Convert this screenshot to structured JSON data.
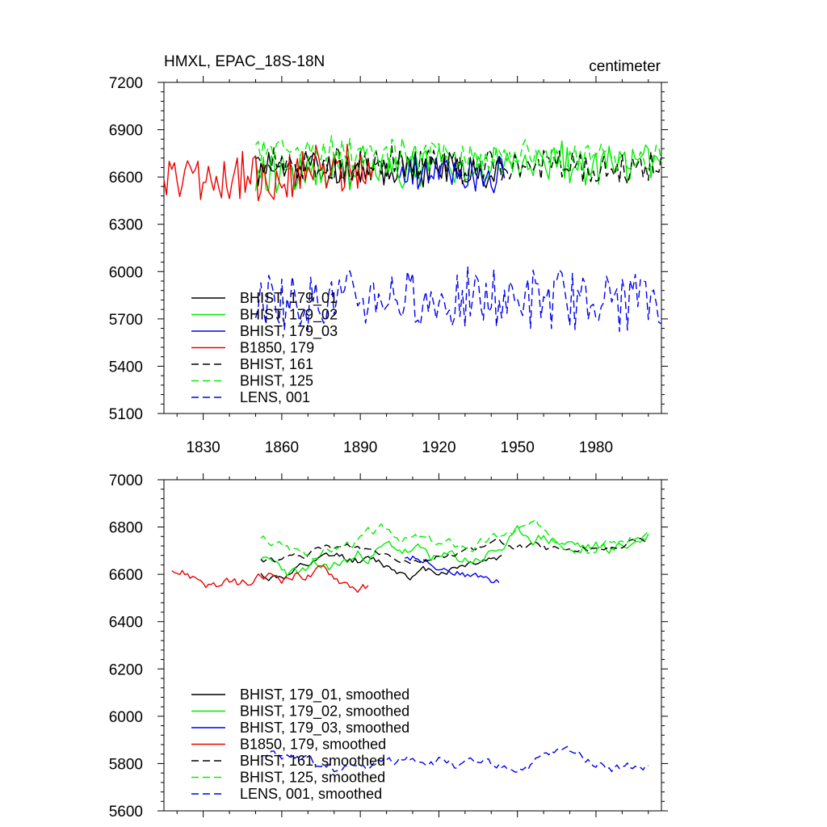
{
  "chart_data": [
    {
      "type": "line",
      "title": "HMXL, EPAC_18S-18N",
      "units": "centimeter",
      "xlim": [
        1815,
        2005
      ],
      "ylim": [
        5100,
        7200
      ],
      "yticks": [
        "5100",
        "5400",
        "5700",
        "6000",
        "6300",
        "6600",
        "6900",
        "7200"
      ],
      "xticks": [
        "1830",
        "1860",
        "1890",
        "1920",
        "1950",
        "1980"
      ],
      "series": [
        {
          "name": "BHIST, 179_01",
          "color": "#000000",
          "dash": false,
          "start": 1850,
          "end": 1945,
          "base": 6650,
          "amp": 110,
          "trend": 0,
          "seed": 11
        },
        {
          "name": "BHIST, 179_02",
          "color": "#00ee00",
          "dash": false,
          "start": 1850,
          "end": 2005,
          "base": 6640,
          "amp": 120,
          "trend": 60,
          "seed": 22
        },
        {
          "name": "BHIST, 179_03",
          "color": "#0000ee",
          "dash": false,
          "start": 1905,
          "end": 1945,
          "base": 6620,
          "amp": 110,
          "trend": 0,
          "seed": 33
        },
        {
          "name": "B1850, 179",
          "color": "#ee0000",
          "dash": false,
          "start": 1815,
          "end": 1895,
          "base": 6580,
          "amp": 150,
          "trend": 60,
          "seed": 44
        },
        {
          "name": "BHIST, 161",
          "color": "#000000",
          "dash": true,
          "start": 1850,
          "end": 2005,
          "base": 6690,
          "amp": 100,
          "trend": -40,
          "seed": 55
        },
        {
          "name": "BHIST, 125",
          "color": "#00ee00",
          "dash": true,
          "start": 1850,
          "end": 2005,
          "base": 6760,
          "amp": 90,
          "trend": -40,
          "seed": 66
        },
        {
          "name": "LENS, 001",
          "color": "#0000ee",
          "dash": true,
          "start": 1850,
          "end": 2005,
          "base": 5820,
          "amp": 170,
          "trend": 0,
          "seed": 77
        }
      ]
    },
    {
      "type": "line",
      "title": "",
      "units": "",
      "xlim": [
        1815,
        2005
      ],
      "ylim": [
        5600,
        7000
      ],
      "yticks": [
        "5600",
        "5800",
        "6000",
        "6200",
        "6400",
        "6600",
        "6800",
        "7000"
      ],
      "xticks": [],
      "series": [
        {
          "name": "BHIST, 179_01, smoothed",
          "color": "#000000",
          "dash": false,
          "start": 1852,
          "end": 1944,
          "base": 6620,
          "amp": 55,
          "trend": 30,
          "seed": 12
        },
        {
          "name": "BHIST, 179_02, smoothed",
          "color": "#00ee00",
          "dash": false,
          "start": 1852,
          "end": 2000,
          "base": 6620,
          "amp": 80,
          "trend": 140,
          "seed": 23
        },
        {
          "name": "BHIST, 179_03, smoothed",
          "color": "#0000ee",
          "dash": false,
          "start": 1907,
          "end": 1943,
          "base": 6660,
          "amp": 50,
          "trend": -60,
          "seed": 34
        },
        {
          "name": "B1850, 179, smoothed",
          "color": "#ee0000",
          "dash": false,
          "start": 1818,
          "end": 1893,
          "base": 6590,
          "amp": 70,
          "trend": -20,
          "seed": 45
        },
        {
          "name": "BHIST, 161, smoothed",
          "color": "#000000",
          "dash": true,
          "start": 1852,
          "end": 2000,
          "base": 6680,
          "amp": 40,
          "trend": 40,
          "seed": 56
        },
        {
          "name": "BHIST, 125, smoothed",
          "color": "#00ee00",
          "dash": true,
          "start": 1852,
          "end": 2000,
          "base": 6730,
          "amp": 60,
          "trend": 40,
          "seed": 67
        },
        {
          "name": "LENS, 001, smoothed",
          "color": "#0000ee",
          "dash": true,
          "start": 1852,
          "end": 2000,
          "base": 5790,
          "amp": 60,
          "trend": 20,
          "seed": 78
        }
      ]
    }
  ]
}
